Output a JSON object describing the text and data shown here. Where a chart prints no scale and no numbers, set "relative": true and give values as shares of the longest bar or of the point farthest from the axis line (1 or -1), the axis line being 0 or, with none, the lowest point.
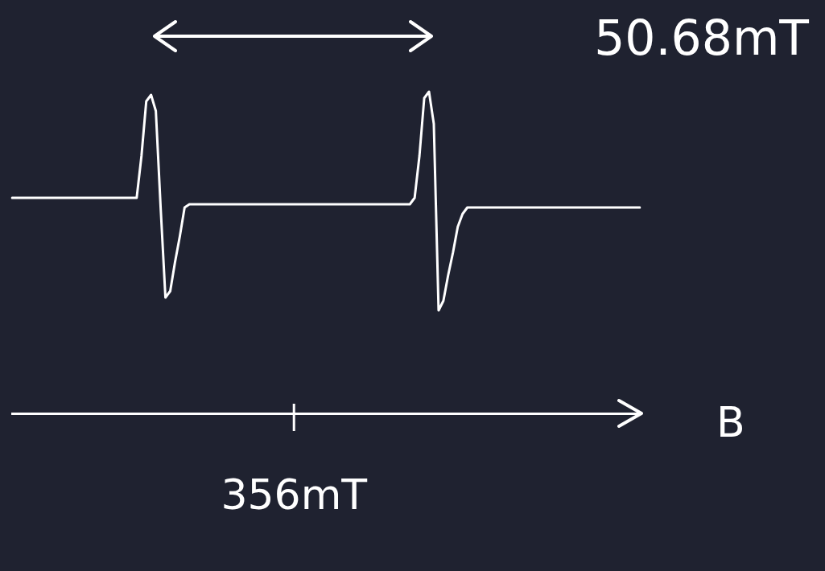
{
  "chart_data": {
    "type": "line",
    "relative": true,
    "color": "#ffffff",
    "marker": "none",
    "line_style": "solid",
    "grid": false,
    "legend": false,
    "categories": [
      null,
      null,
      null,
      null,
      null,
      null,
      null,
      null,
      null,
      null,
      null,
      null,
      null,
      null,
      null,
      null,
      null,
      null,
      null,
      null,
      null,
      null,
      null,
      null,
      null,
      null,
      null,
      null,
      null,
      null,
      null,
      null,
      null,
      null,
      null,
      null,
      null,
      null,
      null,
      null,
      null,
      null,
      null,
      null,
      null,
      null,
      null,
      null,
      null,
      null,
      null,
      null,
      null,
      null,
      null,
      null,
      null,
      null,
      null,
      null,
      null,
      null,
      null,
      null,
      null,
      null,
      null,
      null,
      null,
      null,
      null,
      null,
      null,
      null,
      null,
      null,
      null,
      null,
      null,
      null,
      null,
      null,
      null,
      null,
      null,
      null,
      null,
      null,
      null,
      null,
      null,
      null,
      null,
      null,
      null,
      null,
      null,
      null,
      null,
      null,
      null,
      null,
      null,
      null,
      null,
      null,
      null,
      null,
      null,
      null,
      null,
      null,
      null,
      null,
      null,
      null,
      null,
      null,
      null,
      null,
      null,
      null,
      null,
      null,
      null,
      null,
      null,
      null,
      null,
      null,
      null,
      null
    ],
    "values": [
      0.67,
      0.67,
      0.67,
      0.67,
      0.67,
      0.67,
      0.67,
      0.67,
      0.67,
      0.67,
      0.67,
      0.67,
      0.67,
      0.67,
      0.67,
      0.67,
      0.67,
      0.67,
      0.67,
      0.67,
      0.67,
      0.67,
      0.67,
      0.67,
      0.67,
      0.67,
      0.67,
      0.8,
      0.97,
      0.99,
      0.94,
      0.64,
      0.36,
      0.38,
      0.47,
      0.55,
      0.64,
      0.65,
      0.65,
      0.65,
      0.65,
      0.65,
      0.65,
      0.65,
      0.65,
      0.65,
      0.65,
      0.65,
      0.65,
      0.65,
      0.65,
      0.65,
      0.65,
      0.65,
      0.65,
      0.65,
      0.65,
      0.65,
      0.65,
      0.65,
      0.65,
      0.65,
      0.65,
      0.65,
      0.65,
      0.65,
      0.65,
      0.65,
      0.65,
      0.65,
      0.65,
      0.65,
      0.65,
      0.65,
      0.65,
      0.65,
      0.65,
      0.65,
      0.65,
      0.65,
      0.65,
      0.65,
      0.65,
      0.65,
      0.67,
      0.8,
      0.98,
      1,
      0.9,
      0.32,
      0.35,
      0.43,
      0.5,
      0.58,
      0.62,
      0.64,
      0.64,
      0.64,
      0.64,
      0.64,
      0.64,
      0.64,
      0.64,
      0.64,
      0.64,
      0.64,
      0.64,
      0.64,
      0.64,
      0.64,
      0.64,
      0.64,
      0.64,
      0.64,
      0.64,
      0.64,
      0.64,
      0.64,
      0.64,
      0.64,
      0.64,
      0.64,
      0.64,
      0.64,
      0.64,
      0.64,
      0.64,
      0.64,
      0.64,
      0.64,
      0.64,
      0.64
    ],
    "xlabel": "B",
    "annotations": [
      "50.68mT",
      "356mT"
    ]
  }
}
